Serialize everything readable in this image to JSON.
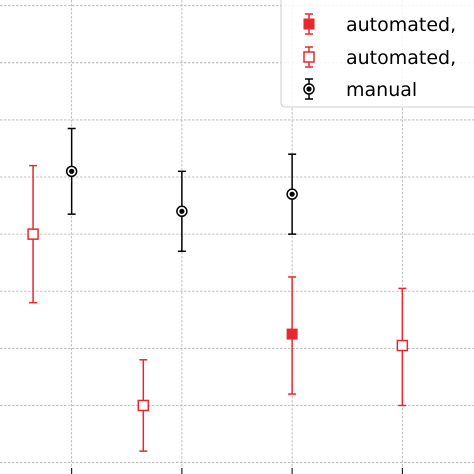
{
  "chart_data": {
    "type": "scatter",
    "title": "",
    "xlabel": "",
    "ylabel": "",
    "xlim": [
      0.35,
      4.65
    ],
    "ylim": [
      0.0,
      8.3
    ],
    "x_gridlines": [
      1,
      2,
      3,
      4
    ],
    "y_gridlines": [
      0.2,
      1.2,
      2.2,
      3.2,
      4.2,
      5.2,
      6.2,
      7.2,
      8.2
    ],
    "grid": true,
    "legend_position": "top-right",
    "series": [
      {
        "name": "automated,",
        "color": "#e8282e",
        "marker": "filled-square",
        "points": [
          {
            "x": 3.0,
            "y": 2.45,
            "err_low": 1.05,
            "err_high": 1.0
          }
        ]
      },
      {
        "name": "automated,",
        "color": "#e8282e",
        "marker": "open-square",
        "points": [
          {
            "x": 0.65,
            "y": 4.2,
            "err_low": 1.2,
            "err_high": 1.2
          },
          {
            "x": 1.65,
            "y": 1.2,
            "err_low": 0.8,
            "err_high": 0.8
          },
          {
            "x": 4.0,
            "y": 2.25,
            "err_low": 1.05,
            "err_high": 1.0
          }
        ]
      },
      {
        "name": "manual",
        "color": "#000000",
        "marker": "ringed-circle",
        "points": [
          {
            "x": 1.0,
            "y": 5.3,
            "err_low": 0.75,
            "err_high": 0.75
          },
          {
            "x": 2.0,
            "y": 4.6,
            "err_low": 0.7,
            "err_high": 0.7
          },
          {
            "x": 3.0,
            "y": 4.9,
            "err_low": 0.7,
            "err_high": 0.7
          }
        ]
      }
    ]
  }
}
